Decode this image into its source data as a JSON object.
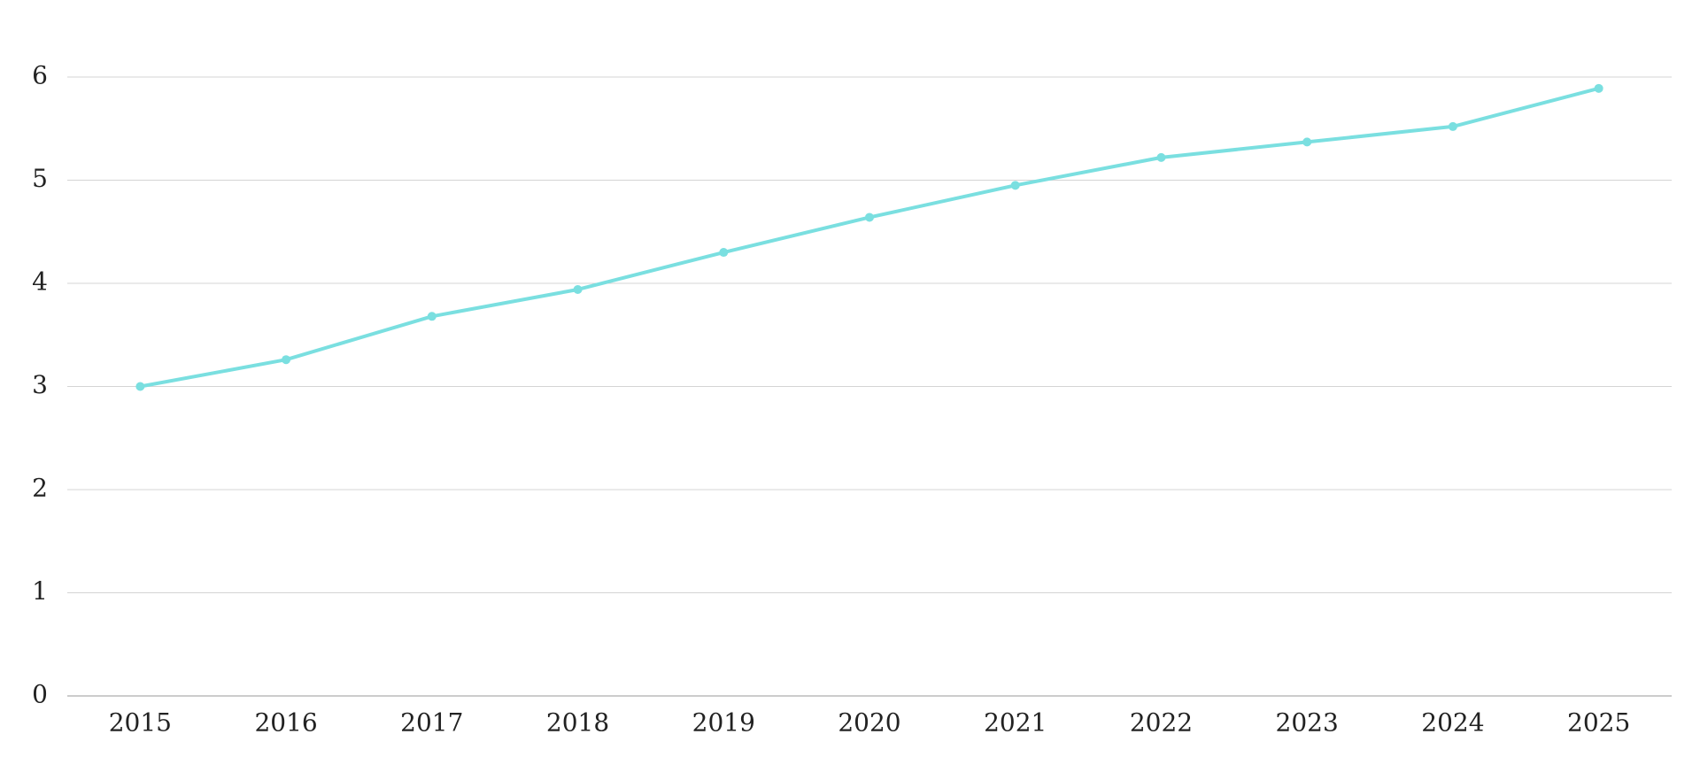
{
  "chart_data": {
    "type": "line",
    "categories": [
      "2015",
      "2016",
      "2017",
      "2018",
      "2019",
      "2020",
      "2021",
      "2022",
      "2023",
      "2024",
      "2025"
    ],
    "series": [
      {
        "color": "#7adfe0",
        "values": [
          3.0,
          3.26,
          3.68,
          3.94,
          4.3,
          4.64,
          4.95,
          5.22,
          5.37,
          5.52,
          5.89
        ]
      }
    ],
    "ylim": [
      0,
      6
    ],
    "yticks": [
      0,
      1,
      2,
      3,
      4,
      5,
      6
    ],
    "grid": true
  }
}
